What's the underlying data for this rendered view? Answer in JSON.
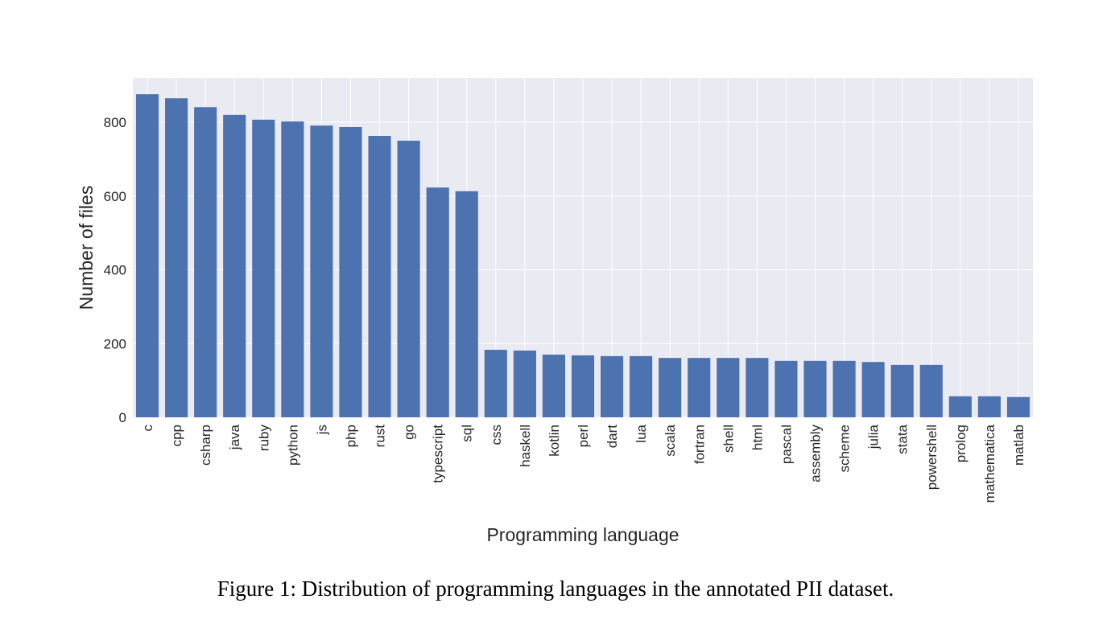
{
  "chart_data": {
    "type": "bar",
    "x_label": "Programming language",
    "y_label": "Number of files",
    "categories": [
      "c",
      "cpp",
      "csharp",
      "java",
      "ruby",
      "python",
      "js",
      "php",
      "rust",
      "go",
      "typescript",
      "sql",
      "css",
      "haskell",
      "kotlin",
      "perl",
      "dart",
      "lua",
      "scala",
      "fortran",
      "shell",
      "html",
      "pascal",
      "assembly",
      "scheme",
      "julia",
      "stata",
      "powershell",
      "prolog",
      "mathematica",
      "matlab"
    ],
    "values": [
      876,
      865,
      841,
      820,
      807,
      802,
      791,
      787,
      763,
      750,
      623,
      613,
      183,
      181,
      170,
      168,
      166,
      166,
      161,
      161,
      161,
      161,
      153,
      153,
      153,
      150,
      142,
      142,
      57,
      57,
      55
    ],
    "color": "#4c72b0",
    "background": "#eaeaf2",
    "ylim": [
      0,
      920
    ],
    "yticks": [
      0,
      200,
      400,
      600,
      800
    ],
    "grid": true
  },
  "caption": "Figure 1: Distribution of programming languages in the annotated PII dataset."
}
